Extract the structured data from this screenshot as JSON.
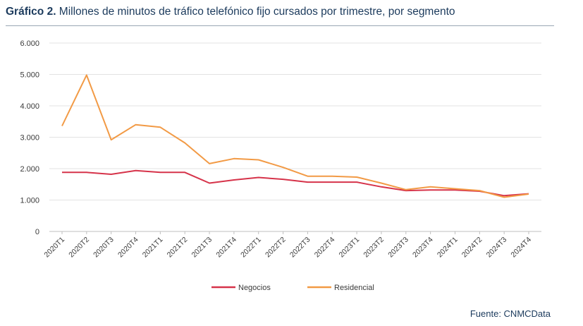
{
  "header": {
    "title_prefix": "Gráfico 2.",
    "title": " Millones de minutos de tráfico telefónico fijo cursados por trimestre, por segmento"
  },
  "footer": {
    "source": "Fuente: CNMCData"
  },
  "chart_data": {
    "type": "line",
    "categories": [
      "2020T1",
      "2020T2",
      "2020T3",
      "2020T4",
      "2021T1",
      "2021T2",
      "2021T3",
      "2021T4",
      "2022T1",
      "2022T2",
      "2022T3",
      "2022T4",
      "2023T1",
      "2023T2",
      "2023T3",
      "2023T4",
      "2024T1",
      "2024T2",
      "2024T3",
      "2024T4"
    ],
    "series": [
      {
        "name": "Negocios",
        "color": "#d6334a",
        "values": [
          1880,
          1880,
          1820,
          1940,
          1880,
          1880,
          1540,
          1640,
          1720,
          1660,
          1570,
          1570,
          1570,
          1420,
          1300,
          1320,
          1320,
          1280,
          1140,
          1200
        ]
      },
      {
        "name": "Residencial",
        "color": "#f29a45",
        "values": [
          3360,
          4980,
          2920,
          3400,
          3320,
          2820,
          2160,
          2320,
          2280,
          2040,
          1760,
          1760,
          1730,
          1540,
          1330,
          1420,
          1360,
          1300,
          1090,
          1190
        ]
      }
    ],
    "y_ticks": [
      "0",
      "1.000",
      "2.000",
      "3.000",
      "4.000",
      "5.000",
      "6.000"
    ],
    "ylim": [
      0,
      6000
    ],
    "grid": true,
    "legend_position": "bottom"
  }
}
